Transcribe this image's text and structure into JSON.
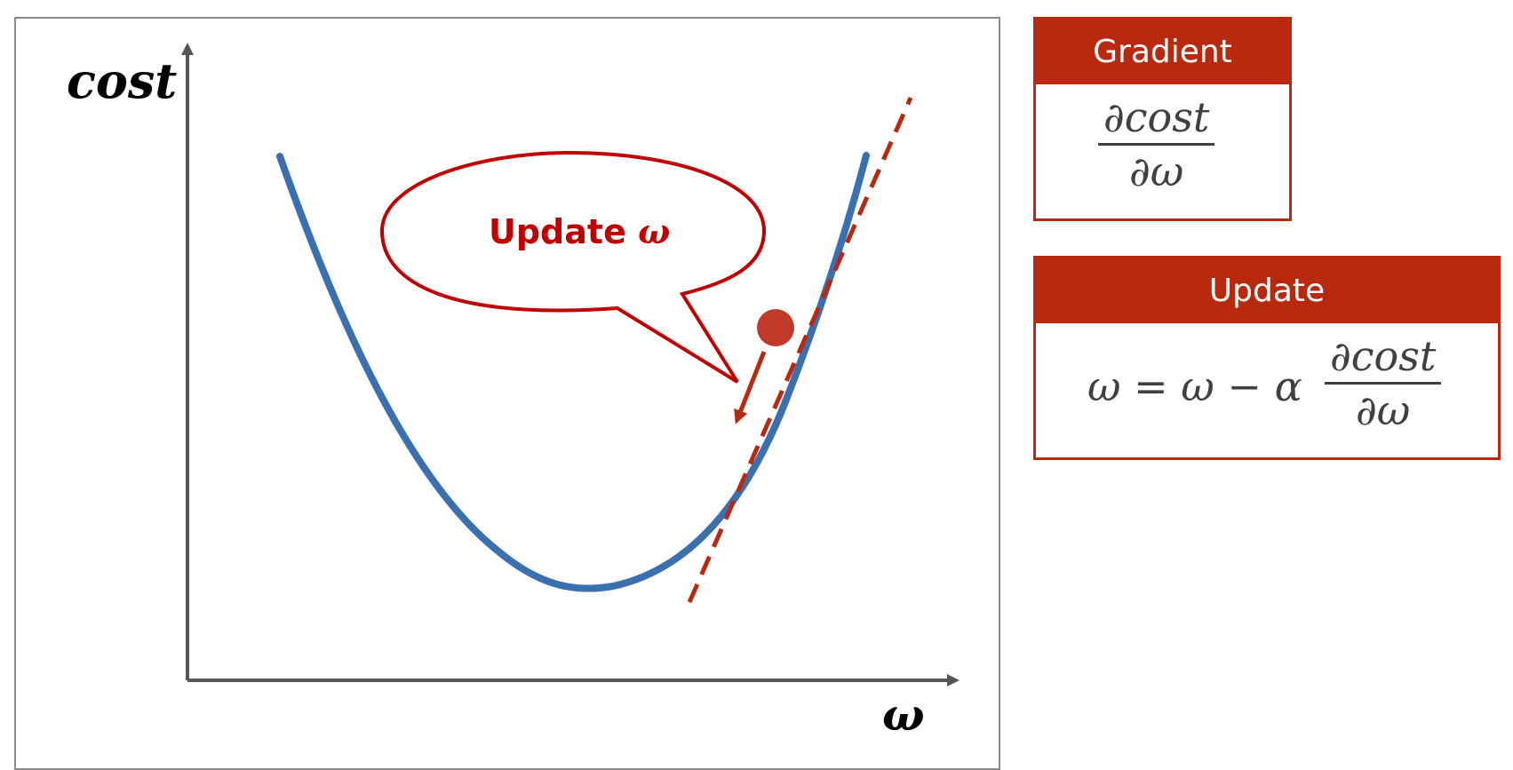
{
  "diagram": {
    "y_axis_label": "cost",
    "x_axis_label": "ω",
    "callout": {
      "text": "Update ",
      "symbol": "ω"
    },
    "colors": {
      "curve": "#3a6fb0",
      "accent": "#b8290f",
      "callout_border": "#c00000",
      "axis": "#555555"
    }
  },
  "gradient_box": {
    "header": "Gradient",
    "numerator": "∂cost",
    "denominator": "∂ω"
  },
  "update_box": {
    "header": "Update",
    "lhs": "ω = ω − α",
    "numerator": "∂cost",
    "denominator": "∂ω"
  }
}
